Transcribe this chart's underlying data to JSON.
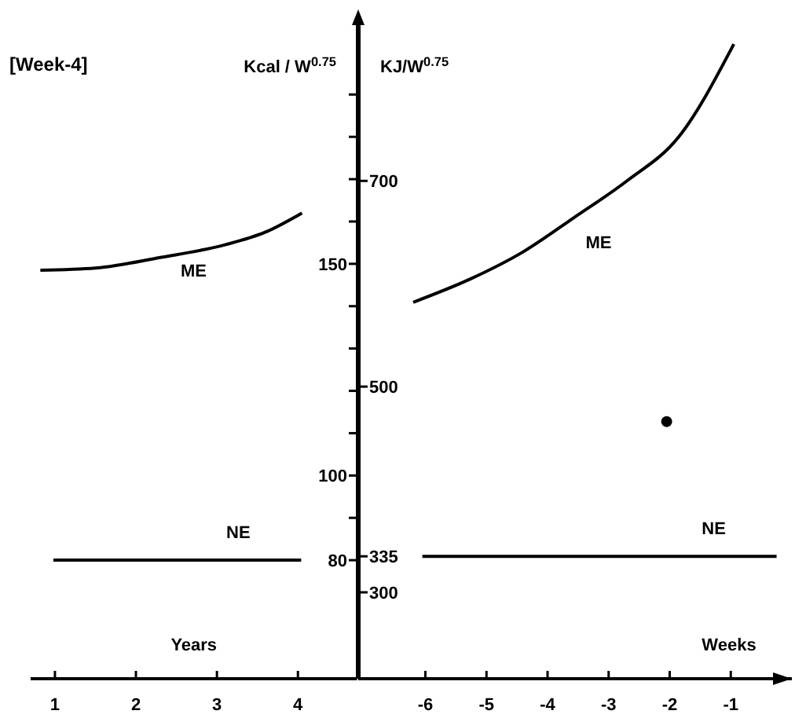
{
  "chart_data": [
    {
      "type": "line",
      "title": "[Week-4]",
      "ylabel": "Kcal / W$^{0.75}$",
      "xlabel": "Years",
      "xlim": [
        0.7,
        4.73
      ],
      "xticks": [
        1,
        2,
        3,
        4
      ],
      "ylim": [
        52,
        207.5
      ],
      "yticks": [
        {
          "value": 80,
          "label": "80"
        },
        {
          "value": 90,
          "label": null
        },
        {
          "value": 100,
          "label": "100"
        },
        {
          "value": 110,
          "label": null
        },
        {
          "value": 120,
          "label": null
        },
        {
          "value": 130,
          "label": null
        },
        {
          "value": 140,
          "label": null
        },
        {
          "value": 150,
          "label": "150"
        },
        {
          "value": 160,
          "label": null
        },
        {
          "value": 170,
          "label": null
        },
        {
          "value": 180,
          "label": null
        },
        {
          "value": 190,
          "label": null
        }
      ],
      "grid": false,
      "legend": false,
      "series": [
        {
          "name": "ME",
          "color": "#000000",
          "x": [
            0.82,
            1.5,
            2.3,
            3.1,
            3.6,
            4.05
          ],
          "values": [
            148.5,
            149,
            151.5,
            154.5,
            157.5,
            162
          ]
        },
        {
          "name": "NE",
          "color": "#000000",
          "x": [
            0.98,
            4.04
          ],
          "values": [
            80,
            80
          ]
        }
      ]
    },
    {
      "type": "line",
      "ylabel": "KJ/W$^{0.75}$",
      "xlabel": "Weeks",
      "xlim": [
        -7.1,
        0
      ],
      "xticks": [
        -6,
        -5,
        -4,
        -3,
        -2,
        -1
      ],
      "ylim": [
        216,
        856
      ],
      "yticks": [
        300,
        335,
        500,
        700
      ],
      "grid": false,
      "legend": false,
      "series": [
        {
          "name": "ME",
          "color": "#000000",
          "x": [
            -6.2,
            -5.25,
            -4.4,
            -3.55,
            -2.7,
            -1.85,
            -0.95
          ],
          "values": [
            582,
            605,
            631,
            665,
            700,
            743,
            833
          ]
        },
        {
          "name": "NE",
          "color": "#000000",
          "x": [
            -6.05,
            -0.25
          ],
          "values": [
            335,
            335
          ]
        },
        {
          "type": "scatter",
          "color": "#000000",
          "marker": "circle",
          "x": [
            -2.05
          ],
          "values": [
            466
          ]
        }
      ]
    }
  ]
}
